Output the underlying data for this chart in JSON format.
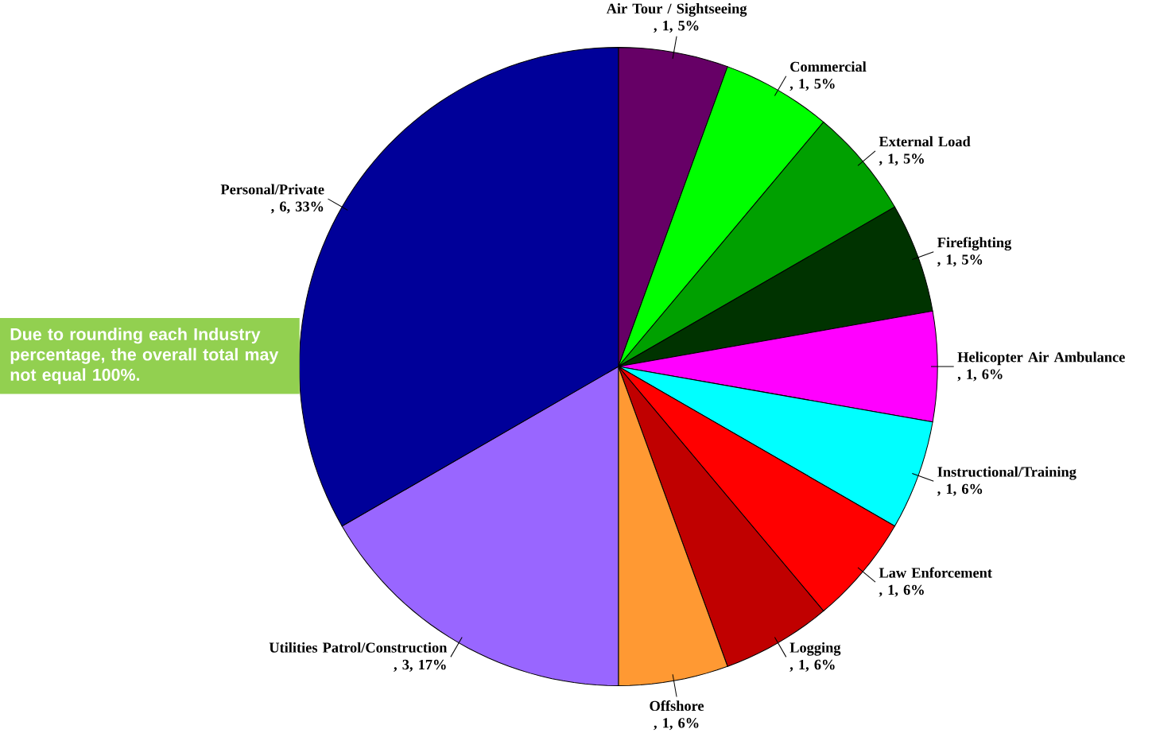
{
  "chart_data": {
    "type": "pie",
    "categories": [
      "Air Tour / Sightseeing",
      "Commercial",
      "External Load",
      "Firefighting",
      "Helicopter Air Ambulance",
      "Instructional/Training",
      "Law Enforcement",
      "Logging",
      "Offshore",
      "Utilities Patrol/Construction",
      "Personal/Private"
    ],
    "values": [
      1,
      1,
      1,
      1,
      1,
      1,
      1,
      1,
      1,
      3,
      6
    ],
    "value_labels": [
      ", 1, 5%",
      ", 1, 5%",
      ", 1, 5%",
      ", 1, 5%",
      ", 1, 6%",
      ", 1, 6%",
      ", 1, 6%",
      ", 1, 6%",
      ", 1, 6%",
      ", 3, 17%",
      ", 6, 33%"
    ],
    "colors": [
      "#660066",
      "#00ff00",
      "#00a000",
      "#003300",
      "#ff00ff",
      "#00ffff",
      "#ff0000",
      "#c00000",
      "#ff9933",
      "#9966ff",
      "#000099"
    ],
    "annotations": [
      "Due to rounding each Industry percentage, the overall total may not equal 100%."
    ]
  }
}
